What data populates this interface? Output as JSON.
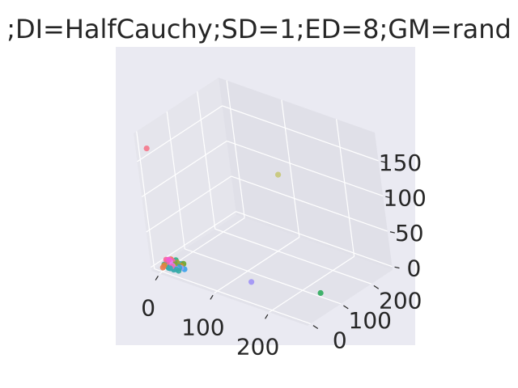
{
  "chart_data": {
    "type": "scatter",
    "projection": "3d",
    "title": ";DI=HalfCauchy;SD=1;ED=8;GM=rand",
    "xlabel": "",
    "ylabel": "",
    "zlabel": "",
    "x_ticks": [
      "0",
      "100",
      "200"
    ],
    "y_ticks": [
      "0",
      "100",
      "200"
    ],
    "z_ticks": [
      "0",
      "50",
      "100",
      "150"
    ],
    "xlim": [
      -15,
      270
    ],
    "ylim": [
      -10,
      270
    ],
    "zlim": [
      -5,
      190
    ],
    "grid": true,
    "background": "#eaeaf2",
    "grid_color": "#ffffff",
    "points": [
      {
        "x": 2,
        "y": 6,
        "z": 2,
        "color": "#e58ea6"
      },
      {
        "x": 8,
        "y": 8,
        "z": 1,
        "color": "#3ba3ec"
      },
      {
        "x": 14,
        "y": 10,
        "z": 1,
        "color": "#38a9c5"
      },
      {
        "x": 5,
        "y": 14,
        "z": 3,
        "color": "#f067bc"
      },
      {
        "x": 10,
        "y": 4,
        "z": 2,
        "color": "#36ada4"
      },
      {
        "x": 16,
        "y": 15,
        "z": 1,
        "color": "#b6a032"
      },
      {
        "x": 3,
        "y": 3,
        "z": 4,
        "color": "#ce9032"
      },
      {
        "x": 20,
        "y": 12,
        "z": 1,
        "color": "#bb83f4"
      },
      {
        "x": 6,
        "y": 18,
        "z": 2,
        "color": "#f569b6"
      },
      {
        "x": 12,
        "y": 20,
        "z": 3,
        "color": "#8ea032"
      },
      {
        "x": 18,
        "y": 6,
        "z": 1,
        "color": "#3aa9ac"
      },
      {
        "x": 4,
        "y": 10,
        "z": 6,
        "color": "#f7659b"
      },
      {
        "x": 9,
        "y": 25,
        "z": 2,
        "color": "#33b07a"
      },
      {
        "x": 14,
        "y": 2,
        "z": 3,
        "color": "#37abb2"
      },
      {
        "x": 22,
        "y": 8,
        "z": 2,
        "color": "#39a7d0"
      },
      {
        "x": 1,
        "y": 1,
        "z": 1,
        "color": "#ea7d4f"
      },
      {
        "x": 7,
        "y": 12,
        "z": 8,
        "color": "#f45cd3"
      },
      {
        "x": 11,
        "y": 16,
        "z": 1,
        "color": "#34af88"
      },
      {
        "x": 25,
        "y": 18,
        "z": 2,
        "color": "#9c9ef5"
      },
      {
        "x": 3,
        "y": 22,
        "z": 3,
        "color": "#e28a32"
      },
      {
        "x": 15,
        "y": 9,
        "z": 5,
        "color": "#d383f4"
      },
      {
        "x": 6,
        "y": 6,
        "z": 12,
        "color": "#f7659b"
      },
      {
        "x": 19,
        "y": 22,
        "z": 1,
        "color": "#36ada4"
      },
      {
        "x": 8,
        "y": 30,
        "z": 2,
        "color": "#38a9c5"
      },
      {
        "x": 2,
        "y": 15,
        "z": 1,
        "color": "#3ba3ec"
      },
      {
        "x": 13,
        "y": 27,
        "z": 4,
        "color": "#a3a333"
      },
      {
        "x": 17,
        "y": 3,
        "z": 6,
        "color": "#f569b6"
      },
      {
        "x": 24,
        "y": 14,
        "z": 3,
        "color": "#39a7d0"
      },
      {
        "x": 10,
        "y": 11,
        "z": 9,
        "color": "#e283f4"
      },
      {
        "x": 4,
        "y": 26,
        "z": 2,
        "color": "#33b07a"
      },
      {
        "x": 21,
        "y": 25,
        "z": 2,
        "color": "#cd9032"
      },
      {
        "x": 0,
        "y": 8,
        "z": 3,
        "color": "#3aa9ac"
      },
      {
        "x": 16,
        "y": 33,
        "z": 1,
        "color": "#38a9c5"
      },
      {
        "x": 27,
        "y": 6,
        "z": 2,
        "color": "#36ada4"
      },
      {
        "x": 12,
        "y": 5,
        "z": 14,
        "color": "#f45cd3"
      },
      {
        "x": 9,
        "y": 20,
        "z": 7,
        "color": "#f7659b"
      },
      {
        "x": 30,
        "y": 20,
        "z": 1,
        "color": "#3ba3ec"
      },
      {
        "x": 6,
        "y": 35,
        "z": 3,
        "color": "#34af88"
      },
      {
        "x": 1,
        "y": 28,
        "z": 5,
        "color": "#ea7d4f"
      },
      {
        "x": 23,
        "y": 30,
        "z": 4,
        "color": "#6ea532"
      },
      {
        "x": 142,
        "y": 40,
        "z": 8,
        "color": "#a194f5"
      },
      {
        "x": 240,
        "y": 90,
        "z": 5,
        "color": "#32ac5f"
      },
      {
        "x": 100,
        "y": 230,
        "z": 95,
        "color": "#c8c87a"
      },
      {
        "x": 0,
        "y": 0,
        "z": 170,
        "color": "#f47a8c"
      }
    ]
  }
}
